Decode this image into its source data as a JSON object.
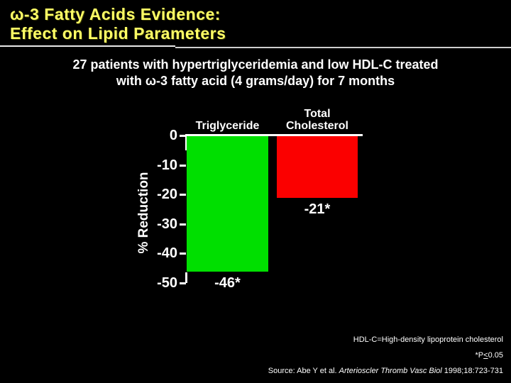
{
  "header": {
    "title_line1": "ω-3 Fatty Acids Evidence:",
    "title_line2": "Effect on Lipid Parameters",
    "title_color": "#FFFF66"
  },
  "subtitle": {
    "line1": "27 patients with hypertriglyceridemia and low HDL-C treated",
    "line2": "with ω-3 fatty acid (4 grams/day) for 7 months"
  },
  "chart_data": {
    "type": "bar",
    "title": "",
    "categories": [
      "Triglyceride",
      "Total Cholesterol"
    ],
    "values": [
      -46,
      -21
    ],
    "value_labels": [
      "-46*",
      "-21*"
    ],
    "bar_colors": [
      "#00DF00",
      "#FB0000"
    ],
    "ylabel": "% Reduction",
    "yticks": [
      0,
      -10,
      -20,
      -30,
      -40,
      -50
    ],
    "ytick_labels": [
      "0",
      "-10",
      "-20",
      "-30",
      "-40",
      "-50"
    ],
    "ylim": [
      -50,
      0
    ],
    "grid": false,
    "legend": "none",
    "background": "#000000",
    "text_color": "#ffffff"
  },
  "footnotes": {
    "line1": "HDL-C=High-density lipoprotein cholesterol",
    "line2_prefix": "*P",
    "line2_comparator": "<",
    "line2_value": "0.05",
    "line3_prefix": "Source: Abe Y et al. ",
    "line3_journal": "Arterioscler Thromb Vasc Biol",
    "line3_suffix": " 1998;18:723-731"
  }
}
